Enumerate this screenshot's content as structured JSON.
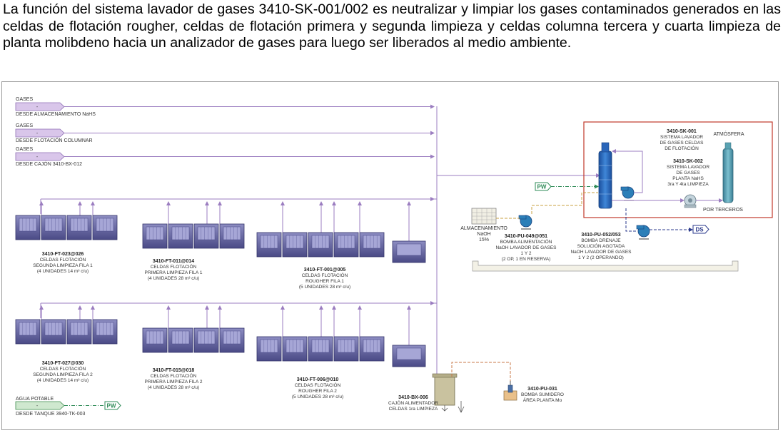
{
  "intro_text": "La función del sistema lavador de gases 3410-SK-001/002 es neutralizar y limpiar los gases contaminados generados en las celdas de flotación rougher, celdas de flotación primera y segunda limpieza y celdas columna tercera y cuarta limpieza de planta molibdeno hacia un analizador de gases para luego ser liberados al medio ambiente.",
  "inlets": [
    {
      "top": "GASES",
      "bottom": "DESDE ALMACENAMIENTO NaHS"
    },
    {
      "top": "GASES",
      "bottom": "DESDE FLOTACIÓN COLUMNAR"
    },
    {
      "top": "GASES",
      "bottom": "DESDE CAJÓN 3410-BX-012"
    },
    {
      "top": "AGUA POTABLE",
      "bottom": "DESDE TANQUE 3940-TK-003"
    }
  ],
  "cell_groups": [
    {
      "tag": "3410-FT-023@026",
      "l1": "CELDAS FLOTACIÓN",
      "l2": "SEGUNDA LIMPIEZA FILA 1",
      "l3": "(4 UNIDADES 14 m³ c/u)"
    },
    {
      "tag": "3410-FT-011@014",
      "l1": "CELDAS FLOTACIÓN",
      "l2": "PRIMERA LIMPIEZA FILA 1",
      "l3": "(4 UNIDADES 28 m³ c/u)"
    },
    {
      "tag": "3410-FT-001@005",
      "l1": "CELDAS FLOTACIÓN",
      "l2": "ROUGHER FILA 1",
      "l3": "(5 UNIDADES 28 m³ c/u)"
    },
    {
      "tag": "3410-FT-027@030",
      "l1": "CELDAS FLOTACIÓN",
      "l2": "SEGUNDA LIMPIEZA FILA 2",
      "l3": "(4 UNIDADES 14 m³ c/u)"
    },
    {
      "tag": "3410-FT-015@018",
      "l1": "CELDAS FLOTACIÓN",
      "l2": "PRIMERA LIMPIEZA FILA 2",
      "l3": "(4 UNIDADES 28 m³ c/u)"
    },
    {
      "tag": "3410-FT-006@010",
      "l1": "CELDAS FLOTACIÓN",
      "l2": "ROUGHER FILA 2",
      "l3": "(5 UNIDADES 28 m³ c/u)"
    }
  ],
  "scrubber1": {
    "tag": "3410-SK-001",
    "l1": "SISTEMA LAVADOR",
    "l2": "DE GASES CELDAS",
    "l3": "DE FLOTACIÓN"
  },
  "scrubber2": {
    "tag": "3410-SK-002",
    "l1": "SISTEMA LAVADOR",
    "l2": "DE GASES",
    "l3": "PLANTA NaHS",
    "l4": "3ra Y 4ta LIMPIEZA"
  },
  "atmosfera": "ATMÓSFERA",
  "por_terceros": "POR TERCEROS",
  "pw": "PW",
  "ds": "DS",
  "storage": {
    "l1": "ALMACENAMIENTO",
    "l2": "NaOH",
    "l3": "15%"
  },
  "pump_feed": {
    "tag": "3410-PU-049@051",
    "l1": "BOMBA ALIMENTACIÓN",
    "l2": "NaOH LAVADOR DE GASES",
    "l3": "1 Y 2",
    "l4": "(2 OP, 1 EN RESERVA)"
  },
  "pump_drain": {
    "tag": "3410-PU-052/053",
    "l1": "BOMBA DRENAJE",
    "l2": "SOLUCIÓN AGOTADA",
    "l3": "NaOH LAVADOR DE GASES",
    "l4": "1 Y 2 (2 OPERANDO)"
  },
  "feed_box": {
    "tag": "3410-BX-006",
    "l1": "CAJÓN ALIMENTADOR",
    "l2": "CELDAS 1ra LIMPIEZA"
  },
  "sump_pump": {
    "tag": "3410-PU-031",
    "l1": "BOMBA SUMIDERO",
    "l2": "ÁREA PLANTA Mo"
  },
  "colors": {
    "gas_line": "#9b7dc0",
    "cell_fill": "#6f6fa8",
    "cell_dark": "#3e3e78",
    "scrubber": "#1f5fb5",
    "pump": "#2c7fb8",
    "frame_red": "#c0392b",
    "pw_green": "#2e8b57",
    "ds_navy": "#2b3a8c",
    "platform": "#f3f1e6"
  }
}
